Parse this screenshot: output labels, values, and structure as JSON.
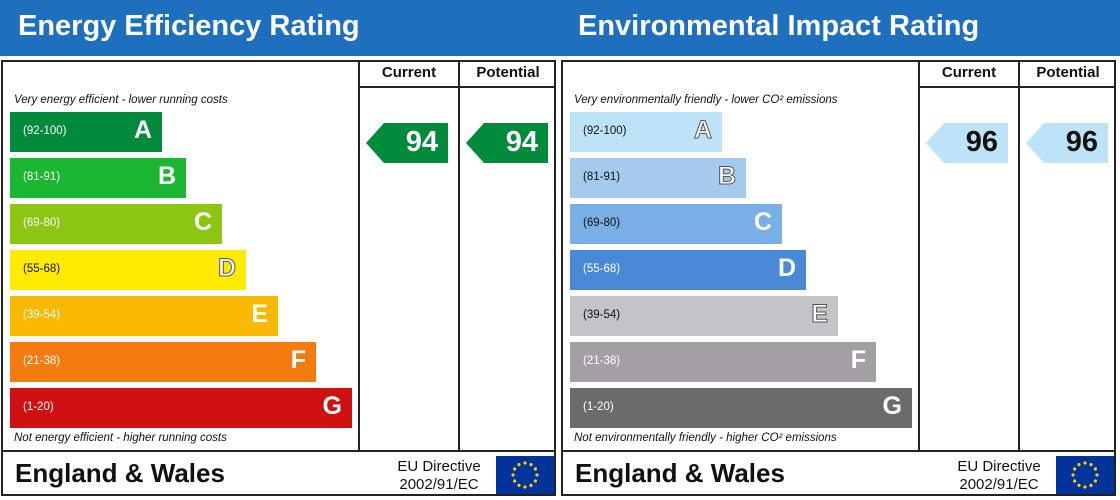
{
  "chart_data": [
    {
      "type": "rating-scale",
      "title": "Energy Efficiency Rating",
      "columns": [
        "Current",
        "Potential"
      ],
      "top_note": "Very energy efficient - lower running costs",
      "bottom_note": "Not energy efficient - higher running costs",
      "bands": [
        {
          "range": "(92-100)",
          "letter": "A",
          "color": "#008a3c"
        },
        {
          "range": "(81-91)",
          "letter": "B",
          "color": "#1cb732"
        },
        {
          "range": "(69-80)",
          "letter": "C",
          "color": "#8dc513"
        },
        {
          "range": "(55-68)",
          "letter": "D",
          "color": "#ffea00"
        },
        {
          "range": "(39-54)",
          "letter": "E",
          "color": "#fbb800"
        },
        {
          "range": "(21-38)",
          "letter": "F",
          "color": "#f47b10"
        },
        {
          "range": "(1-20)",
          "letter": "G",
          "color": "#d01111"
        }
      ],
      "current": {
        "value": 94,
        "band": "A",
        "color": "#008a3c",
        "text_color": "#ffffff"
      },
      "potential": {
        "value": 94,
        "band": "A",
        "color": "#008a3c",
        "text_color": "#ffffff"
      },
      "footer": {
        "region": "England & Wales",
        "directive_line1": "EU Directive",
        "directive_line2": "2002/91/EC"
      }
    },
    {
      "type": "rating-scale",
      "title": "Environmental Impact Rating",
      "columns": [
        "Current",
        "Potential"
      ],
      "top_note": "Very environmentally friendly - lower CO² emissions",
      "bottom_note": "Not environmentally friendly - higher CO² emissions",
      "bands": [
        {
          "range": "(92-100)",
          "letter": "A",
          "color": "#bde3f8"
        },
        {
          "range": "(81-91)",
          "letter": "B",
          "color": "#a6c9ee"
        },
        {
          "range": "(69-80)",
          "letter": "C",
          "color": "#7aaee6"
        },
        {
          "range": "(55-68)",
          "letter": "D",
          "color": "#4a88d8"
        },
        {
          "range": "(39-54)",
          "letter": "E",
          "color": "#c4c4c8"
        },
        {
          "range": "(21-38)",
          "letter": "F",
          "color": "#a39fa4"
        },
        {
          "range": "(1-20)",
          "letter": "G",
          "color": "#6b6b6d"
        }
      ],
      "current": {
        "value": 96,
        "band": "A",
        "color": "#bde3f8",
        "text_color": "#111111"
      },
      "potential": {
        "value": 96,
        "band": "A",
        "color": "#bde3f8",
        "text_color": "#111111"
      },
      "footer": {
        "region": "England & Wales",
        "directive_line1": "EU Directive",
        "directive_line2": "2002/91/EC"
      }
    }
  ],
  "header_color": "#1e6fbe",
  "eu_flag_icon": "eu-flag-icon"
}
